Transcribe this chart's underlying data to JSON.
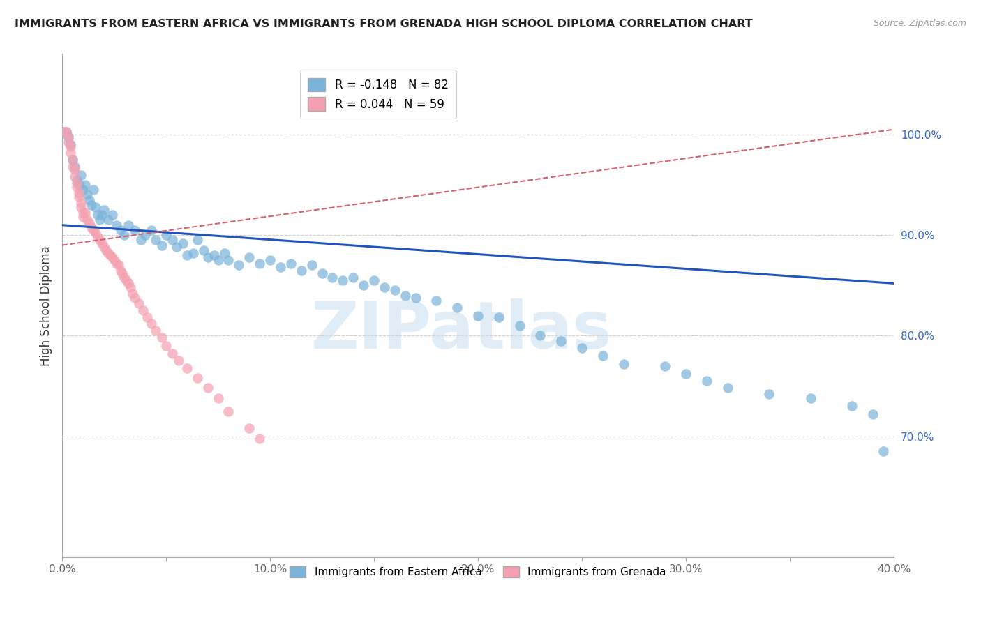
{
  "title": "IMMIGRANTS FROM EASTERN AFRICA VS IMMIGRANTS FROM GRENADA HIGH SCHOOL DIPLOMA CORRELATION CHART",
  "source": "Source: ZipAtlas.com",
  "ylabel": "High School Diploma",
  "xlim": [
    0.0,
    0.4
  ],
  "ylim": [
    0.58,
    1.08
  ],
  "ytick_right_vals": [
    0.7,
    0.8,
    0.9,
    1.0
  ],
  "ytick_right_labels": [
    "70.0%",
    "80.0%",
    "90.0%",
    "100.0%"
  ],
  "grid_color": "#cccccc",
  "background_color": "#ffffff",
  "blue_color": "#7ab3d9",
  "pink_color": "#f4a0b0",
  "blue_line_color": "#2255bb",
  "pink_line_color": "#d46070",
  "legend_blue_R": "-0.148",
  "legend_blue_N": "82",
  "legend_pink_R": "0.044",
  "legend_pink_N": "59",
  "blue_label": "Immigrants from Eastern Africa",
  "pink_label": "Immigrants from Grenada",
  "watermark_text": "ZIPatlas",
  "blue_trend_x0": 0.0,
  "blue_trend_y0": 0.91,
  "blue_trend_x1": 0.4,
  "blue_trend_y1": 0.852,
  "pink_trend_x0": 0.0,
  "pink_trend_y0": 0.89,
  "pink_trend_x1": 0.4,
  "pink_trend_y1": 1.005,
  "blue_scatter_x": [
    0.001,
    0.002,
    0.003,
    0.004,
    0.005,
    0.006,
    0.007,
    0.008,
    0.009,
    0.01,
    0.011,
    0.012,
    0.013,
    0.014,
    0.015,
    0.016,
    0.017,
    0.018,
    0.019,
    0.02,
    0.022,
    0.024,
    0.026,
    0.028,
    0.03,
    0.032,
    0.035,
    0.038,
    0.04,
    0.043,
    0.045,
    0.048,
    0.05,
    0.053,
    0.055,
    0.058,
    0.06,
    0.063,
    0.065,
    0.068,
    0.07,
    0.073,
    0.075,
    0.078,
    0.08,
    0.085,
    0.09,
    0.095,
    0.1,
    0.105,
    0.11,
    0.115,
    0.12,
    0.125,
    0.13,
    0.135,
    0.14,
    0.145,
    0.15,
    0.155,
    0.16,
    0.165,
    0.17,
    0.18,
    0.19,
    0.2,
    0.21,
    0.22,
    0.23,
    0.24,
    0.25,
    0.26,
    0.27,
    0.29,
    0.3,
    0.31,
    0.32,
    0.34,
    0.36,
    0.38,
    0.39,
    0.395
  ],
  "blue_scatter_y": [
    1.003,
    1.003,
    0.997,
    0.99,
    0.975,
    0.968,
    0.955,
    0.95,
    0.96,
    0.945,
    0.95,
    0.94,
    0.935,
    0.93,
    0.945,
    0.928,
    0.92,
    0.915,
    0.92,
    0.925,
    0.915,
    0.92,
    0.91,
    0.905,
    0.9,
    0.91,
    0.905,
    0.895,
    0.9,
    0.905,
    0.895,
    0.89,
    0.9,
    0.895,
    0.888,
    0.892,
    0.88,
    0.882,
    0.895,
    0.885,
    0.878,
    0.88,
    0.875,
    0.882,
    0.875,
    0.87,
    0.878,
    0.872,
    0.875,
    0.868,
    0.872,
    0.865,
    0.87,
    0.862,
    0.858,
    0.855,
    0.858,
    0.85,
    0.855,
    0.848,
    0.845,
    0.84,
    0.838,
    0.835,
    0.828,
    0.82,
    0.818,
    0.81,
    0.8,
    0.795,
    0.788,
    0.78,
    0.772,
    0.77,
    0.762,
    0.755,
    0.748,
    0.742,
    0.738,
    0.73,
    0.722,
    0.685
  ],
  "pink_scatter_x": [
    0.001,
    0.002,
    0.003,
    0.003,
    0.004,
    0.004,
    0.005,
    0.005,
    0.006,
    0.006,
    0.007,
    0.007,
    0.008,
    0.008,
    0.009,
    0.009,
    0.01,
    0.01,
    0.011,
    0.012,
    0.013,
    0.014,
    0.015,
    0.016,
    0.017,
    0.018,
    0.019,
    0.02,
    0.021,
    0.022,
    0.023,
    0.024,
    0.025,
    0.026,
    0.027,
    0.028,
    0.029,
    0.03,
    0.031,
    0.032,
    0.033,
    0.034,
    0.035,
    0.037,
    0.039,
    0.041,
    0.043,
    0.045,
    0.048,
    0.05,
    0.053,
    0.056,
    0.06,
    0.065,
    0.07,
    0.075,
    0.08,
    0.09,
    0.095
  ],
  "pink_scatter_y": [
    1.003,
    1.003,
    0.998,
    0.992,
    0.988,
    0.982,
    0.975,
    0.968,
    0.965,
    0.958,
    0.952,
    0.948,
    0.942,
    0.938,
    0.932,
    0.928,
    0.922,
    0.918,
    0.922,
    0.915,
    0.912,
    0.908,
    0.905,
    0.902,
    0.898,
    0.895,
    0.892,
    0.888,
    0.885,
    0.882,
    0.88,
    0.878,
    0.875,
    0.872,
    0.87,
    0.865,
    0.862,
    0.858,
    0.855,
    0.852,
    0.848,
    0.842,
    0.838,
    0.832,
    0.825,
    0.818,
    0.812,
    0.805,
    0.798,
    0.79,
    0.782,
    0.775,
    0.768,
    0.758,
    0.748,
    0.738,
    0.725,
    0.708,
    0.698
  ]
}
